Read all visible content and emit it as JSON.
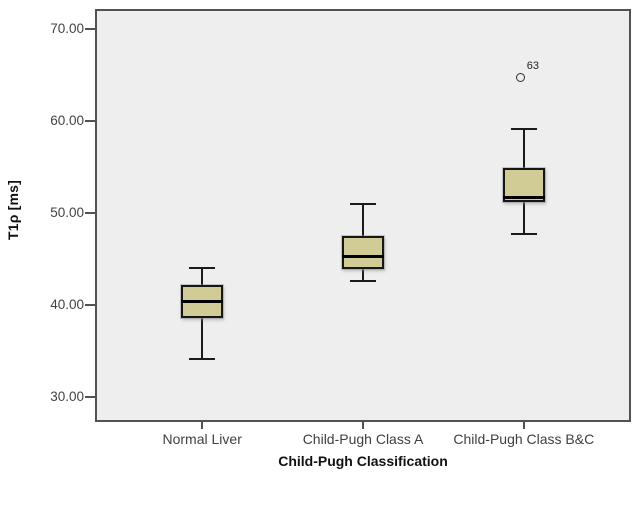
{
  "chart_data": {
    "type": "boxplot",
    "title": "",
    "xlabel": "Child-Pugh Classification",
    "ylabel": "T1ρ [ms]",
    "categories": [
      "Normal Liver",
      "Child-Pugh Class A",
      "Child-Pugh Class B&C"
    ],
    "series": [
      {
        "category": "Normal Liver",
        "whisker_low": 34.2,
        "q1": 38.6,
        "median": 40.5,
        "q3": 42.2,
        "whisker_high": 44.0,
        "outliers": []
      },
      {
        "category": "Child-Pugh Class A",
        "whisker_low": 42.6,
        "q1": 43.9,
        "median": 45.3,
        "q3": 47.5,
        "whisker_high": 51.0,
        "outliers": []
      },
      {
        "category": "Child-Pugh Class B&C",
        "whisker_low": 47.7,
        "q1": 51.2,
        "median": 51.8,
        "q3": 54.9,
        "whisker_high": 59.2,
        "outliers": [
          {
            "value": 64.7,
            "label": "63"
          }
        ]
      }
    ],
    "yticks": [
      {
        "value": 70,
        "label": "70.00"
      },
      {
        "value": 60,
        "label": "60.00"
      },
      {
        "value": 50,
        "label": "50.00"
      },
      {
        "value": 40,
        "label": "40.00"
      },
      {
        "value": 30,
        "label": "30.00"
      }
    ],
    "ylim": [
      27.3,
      72.2
    ],
    "grid": false,
    "legend": "none",
    "colors": {
      "box_fill": "#d1cc96",
      "box_border": "#161616",
      "whisker": "#1a1a1a",
      "median": "#000000",
      "plot_bg": "#eeeeee",
      "frame": "#525252",
      "tick_text": "#434343",
      "axis_title_text": "#111111",
      "outlier_stroke": "#2e2e2e"
    }
  }
}
